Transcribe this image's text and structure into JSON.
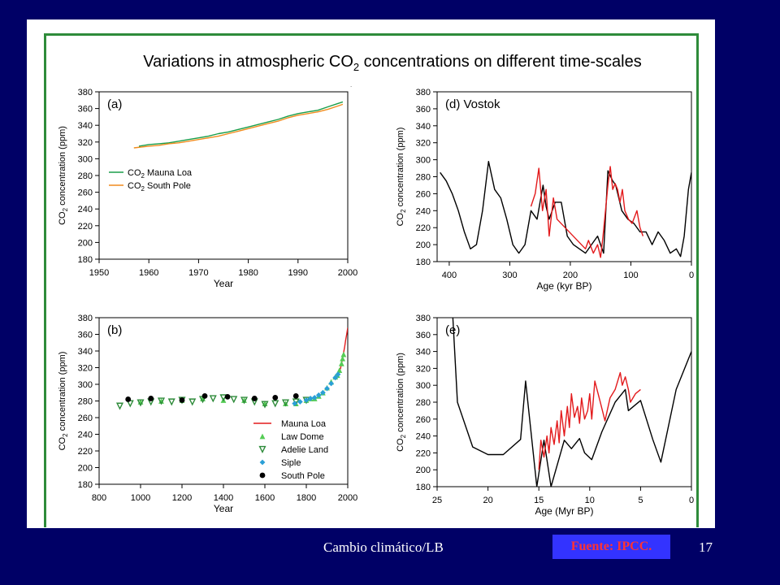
{
  "slide": {
    "title_main": "Variations in atmospheric CO",
    "title_sub": "2",
    "title_tail": " concentrations on different time-scales",
    "footer": "Cambio climático/LB",
    "source": "Fuente: IPCC.",
    "page_number": "17",
    "colors": {
      "background": "#000066",
      "frame": "#2e8b3a",
      "badge_bg": "#3333ff",
      "badge_text": "#ff3333"
    }
  },
  "chart_data": [
    {
      "id": "a",
      "type": "line",
      "panel_label": "(a)",
      "xlabel": "Year",
      "ylabel": "CO2 concentration (ppm)",
      "xlim": [
        1950,
        2000
      ],
      "ylim": [
        180,
        380
      ],
      "xticks": [
        1950,
        1960,
        1970,
        1980,
        1990,
        2000
      ],
      "yticks": [
        180,
        200,
        220,
        240,
        260,
        280,
        300,
        320,
        340,
        360,
        380
      ],
      "legend_position": "left-middle",
      "series": [
        {
          "name": "CO2 Mauna Loa",
          "style": "line",
          "color": "#1a9e4a",
          "x": [
            1958,
            1960,
            1962,
            1964,
            1966,
            1968,
            1970,
            1972,
            1974,
            1976,
            1978,
            1980,
            1982,
            1984,
            1986,
            1988,
            1990,
            1992,
            1994,
            1996,
            1998,
            1999
          ],
          "y": [
            315,
            317,
            318,
            319,
            321,
            323,
            325,
            327,
            330,
            332,
            335,
            338,
            341,
            344,
            347,
            351,
            354,
            356,
            358,
            362,
            366,
            368
          ]
        },
        {
          "name": "CO2 South Pole",
          "style": "line",
          "color": "#f08c1e",
          "x": [
            1957,
            1960,
            1962,
            1964,
            1966,
            1968,
            1970,
            1972,
            1974,
            1976,
            1978,
            1980,
            1982,
            1984,
            1986,
            1988,
            1990,
            1992,
            1994,
            1996,
            1998,
            1999
          ],
          "y": [
            313,
            315,
            316,
            318,
            319,
            321,
            323,
            325,
            327,
            330,
            333,
            336,
            339,
            342,
            345,
            349,
            352,
            354,
            356,
            359,
            363,
            365
          ]
        }
      ]
    },
    {
      "id": "d",
      "type": "line",
      "panel_label": "(d) Vostok",
      "xlabel": "Age (kyr BP)",
      "ylabel": "CO2 concentration (ppm)",
      "xlim": [
        420,
        0
      ],
      "ylim": [
        180,
        380
      ],
      "xticks": [
        400,
        300,
        200,
        100,
        0
      ],
      "yticks": [
        180,
        200,
        220,
        240,
        260,
        280,
        300,
        320,
        340,
        360,
        380
      ],
      "series": [
        {
          "style": "line",
          "color": "#000000",
          "x": [
            415,
            405,
            395,
            385,
            375,
            365,
            355,
            345,
            335,
            325,
            315,
            305,
            295,
            285,
            275,
            265,
            255,
            245,
            240,
            235,
            225,
            215,
            205,
            195,
            185,
            175,
            165,
            155,
            145,
            138,
            130,
            125,
            115,
            105,
            95,
            85,
            75,
            65,
            55,
            45,
            35,
            25,
            18,
            12,
            5,
            0
          ],
          "y": [
            285,
            275,
            260,
            240,
            215,
            195,
            200,
            240,
            298,
            265,
            255,
            230,
            200,
            190,
            200,
            240,
            230,
            270,
            245,
            230,
            250,
            250,
            210,
            200,
            195,
            190,
            200,
            210,
            190,
            287,
            275,
            270,
            240,
            230,
            225,
            215,
            215,
            200,
            215,
            205,
            190,
            195,
            186,
            210,
            265,
            285
          ]
        },
        {
          "style": "line",
          "color": "#e31a1c",
          "x": [
            265,
            258,
            252,
            246,
            240,
            235,
            228,
            222,
            175,
            170,
            162,
            155,
            150,
            146,
            142,
            138,
            134,
            130,
            126,
            122,
            118,
            114,
            110,
            104,
            98,
            90,
            85,
            80
          ],
          "y": [
            245,
            260,
            290,
            240,
            265,
            210,
            255,
            230,
            195,
            205,
            190,
            200,
            185,
            210,
            240,
            270,
            292,
            265,
            272,
            265,
            250,
            265,
            240,
            230,
            225,
            240,
            220,
            210
          ]
        }
      ]
    },
    {
      "id": "b",
      "type": "scatter",
      "panel_label": "(b)",
      "xlabel": "Year",
      "ylabel": "CO2 concentration (ppm)",
      "xlim": [
        800,
        2000
      ],
      "ylim": [
        180,
        380
      ],
      "xticks": [
        800,
        1000,
        1200,
        1400,
        1600,
        1800,
        2000
      ],
      "yticks": [
        180,
        200,
        220,
        240,
        260,
        280,
        300,
        320,
        340,
        360,
        380
      ],
      "legend_position": "lower-right",
      "series": [
        {
          "name": "Mauna Loa",
          "style": "line",
          "color": "#e31a1c",
          "x": [
            1958,
            1965,
            1970,
            1975,
            1980,
            1985,
            1990,
            1995,
            2000
          ],
          "y": [
            315,
            319,
            325,
            331,
            338,
            345,
            353,
            360,
            368
          ]
        },
        {
          "name": "Law Dome",
          "style": "triangle-up",
          "color": "#55cc55",
          "x": [
            1000,
            1100,
            1200,
            1300,
            1400,
            1500,
            1600,
            1700,
            1750,
            1800,
            1820,
            1840,
            1860,
            1880,
            1900,
            1920,
            1940,
            1950,
            1960,
            1970,
            1975,
            1980
          ],
          "y": [
            279,
            280,
            281,
            283,
            281,
            281,
            277,
            277,
            277,
            281,
            283,
            283,
            286,
            290,
            296,
            303,
            309,
            311,
            317,
            325,
            331,
            336
          ]
        },
        {
          "name": "Adelie Land",
          "style": "triangle-down",
          "color": "#2e8b3a",
          "x": [
            900,
            950,
            1000,
            1050,
            1100,
            1150,
            1200,
            1250,
            1300,
            1350,
            1400,
            1450,
            1500,
            1550,
            1600,
            1650,
            1700,
            1750,
            1800
          ],
          "y": [
            274,
            277,
            278,
            279,
            280,
            279,
            281,
            279,
            282,
            283,
            284,
            282,
            281,
            279,
            276,
            277,
            278,
            279,
            281
          ]
        },
        {
          "name": "Siple",
          "style": "diamond",
          "color": "#2a9fd6",
          "x": [
            1744,
            1770,
            1800,
            1820,
            1840,
            1860,
            1880,
            1900,
            1920,
            1940,
            1953
          ],
          "y": [
            277,
            279,
            281,
            283,
            284,
            287,
            290,
            295,
            301,
            308,
            312
          ]
        },
        {
          "name": "South Pole",
          "style": "circle",
          "color": "#000000",
          "x": [
            940,
            1050,
            1200,
            1310,
            1420,
            1550,
            1650,
            1750
          ],
          "y": [
            282,
            283,
            281,
            286,
            285,
            283,
            284,
            286
          ]
        }
      ]
    },
    {
      "id": "e",
      "type": "line",
      "panel_label": "(e)",
      "xlabel": "Age (Myr BP)",
      "ylabel": "CO2 concentration (ppm)",
      "xlim": [
        25,
        0
      ],
      "ylim": [
        180,
        380
      ],
      "xticks": [
        25,
        20,
        15,
        10,
        5,
        0
      ],
      "yticks": [
        180,
        200,
        220,
        240,
        260,
        280,
        300,
        320,
        340,
        360,
        380
      ],
      "series": [
        {
          "style": "line",
          "color": "#000000",
          "x": [
            23.5,
            23,
            21.5,
            20,
            18.5,
            16.8,
            16.3,
            15.2,
            14.5,
            13.8,
            12.5,
            11.8,
            11,
            10.5,
            9.8,
            8.8,
            7.5,
            6.5,
            6.2,
            5,
            3.8,
            3,
            1.5,
            0
          ],
          "y": [
            390,
            280,
            227,
            218,
            218,
            236,
            305,
            180,
            235,
            180,
            235,
            225,
            237,
            220,
            212,
            245,
            280,
            295,
            270,
            282,
            236,
            209,
            295,
            340
          ]
        },
        {
          "style": "line",
          "color": "#e31a1c",
          "x": [
            15,
            14.8,
            14.5,
            14.2,
            14,
            13.8,
            13.5,
            13.2,
            13,
            12.8,
            12.5,
            12.2,
            12,
            11.8,
            11.5,
            11.2,
            11,
            10.8,
            10.5,
            10.2,
            10,
            9.8,
            9.5,
            9,
            8.5,
            8,
            7.5,
            7,
            6.8,
            6.5,
            6.2,
            6,
            5.5,
            5
          ],
          "y": [
            200,
            235,
            215,
            240,
            220,
            250,
            230,
            258,
            232,
            270,
            240,
            275,
            250,
            290,
            262,
            275,
            255,
            285,
            260,
            270,
            290,
            260,
            305,
            282,
            258,
            285,
            295,
            315,
            300,
            310,
            295,
            280,
            290,
            295
          ]
        }
      ]
    }
  ]
}
